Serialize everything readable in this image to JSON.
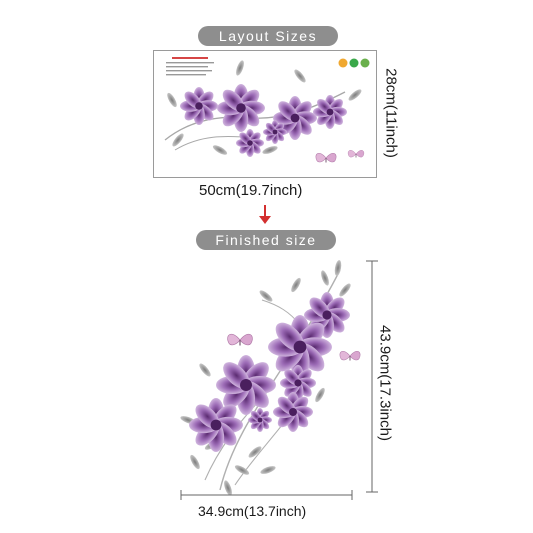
{
  "layout_label": "Layout Sizes",
  "finished_label": "Finished size",
  "sheet_height_label": "28cm(11inch)",
  "sheet_width_label": "50cm(19.7inch)",
  "final_height_label": "43.9cm(17.3inch)",
  "final_width_label": "34.9cm(13.7inch)",
  "colors": {
    "pill": "#8e8e8e",
    "arrow": "#d32f2f",
    "flower": "#a070b8",
    "leaf": "#9a9a9a"
  },
  "icons": [
    "down-arrow-icon",
    "certification-badge-icon"
  ]
}
